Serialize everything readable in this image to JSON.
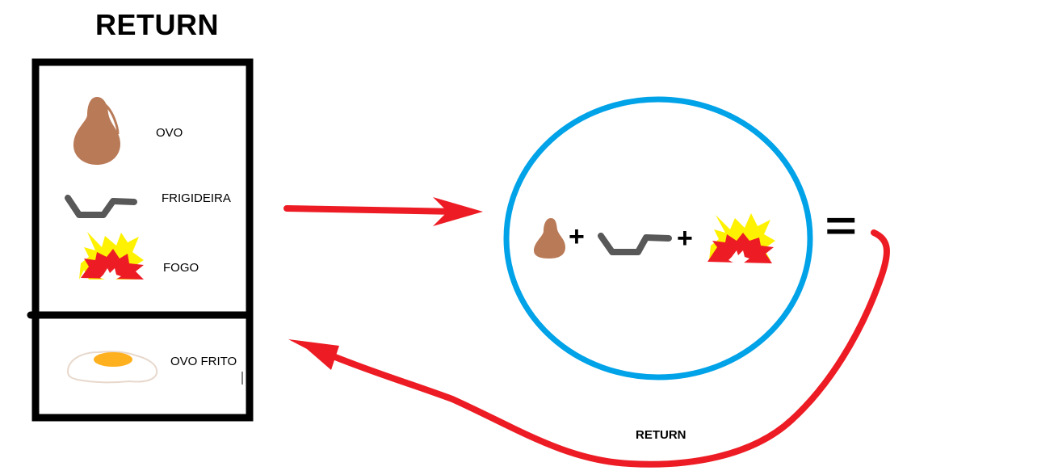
{
  "title": "RETURN",
  "ingredients": [
    {
      "label": "OVO",
      "icon": "egg-icon"
    },
    {
      "label": "FRIGIDEIRA",
      "icon": "frying-pan-icon"
    },
    {
      "label": "FOGO",
      "icon": "fire-icon"
    }
  ],
  "result": {
    "label": "OVO FRITO",
    "icon": "fried-egg-icon"
  },
  "return_arrow_label": "RETURN",
  "equation": {
    "operator_plus": "+",
    "operator_equals": "="
  },
  "colors": {
    "arrow_red": "#ed1c24",
    "circle_blue": "#00a2e8",
    "egg_brown": "#b97a57",
    "pan_gray": "#585858",
    "fire_yellow": "#fff200",
    "fire_red": "#ed1c24",
    "yolk": "#ffb01e"
  }
}
